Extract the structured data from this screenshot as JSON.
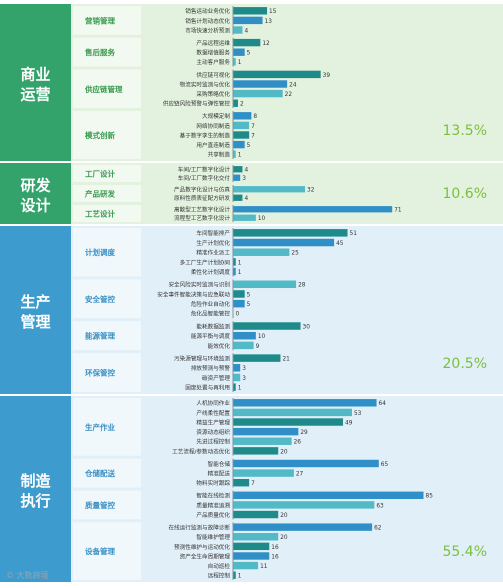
{
  "chart_data": {
    "type": "bar",
    "orientation": "horizontal",
    "x_max": 85,
    "grid": false,
    "colors": {
      "bar_dark": "#1e8a8a",
      "bar_blue": "#2f8fc6",
      "bar_light": "#52b9c7",
      "sector_green": "#33a26b",
      "sector_green_light": "#e3f2df",
      "sector_green_sub": "#3b9a4f",
      "sector_blue": "#3d9ccd",
      "sector_blue_light": "#e1eff8",
      "sector_blue_sub": "#3a8fc4",
      "percent": "#7cbf3f"
    },
    "sectors": [
      {
        "name": "商业运营",
        "name_lines": [
          "商业",
          "运营"
        ],
        "percent": "13.5%",
        "color": "green",
        "groups": [
          {
            "name": "营销管理",
            "items": [
              {
                "label": "销售运动业务优化",
                "value": 15
              },
              {
                "label": "销售计划动态优化",
                "value": 13
              },
              {
                "label": "市场快速分析预测",
                "value": 4
              }
            ]
          },
          {
            "name": "售后服务",
            "items": [
              {
                "label": "产品远程运维",
                "value": 12
              },
              {
                "label": "数据增值服务",
                "value": 5
              },
              {
                "label": "主动客户服务",
                "value": 1
              }
            ]
          },
          {
            "name": "供应链管理",
            "items": [
              {
                "label": "供应链可视化",
                "value": 39
              },
              {
                "label": "物流实时监测与优化",
                "value": 24
              },
              {
                "label": "采购策略优化",
                "value": 22
              },
              {
                "label": "供应链风险预警与弹性管控",
                "value": 2
              }
            ]
          },
          {
            "name": "模式创新",
            "items": [
              {
                "label": "大规模定制",
                "value": 8
              },
              {
                "label": "网络协同制造",
                "value": 7
              },
              {
                "label": "基于数字孪生的制造",
                "value": 7
              },
              {
                "label": "用户直连制造",
                "value": 5
              },
              {
                "label": "共享制造",
                "value": 1
              }
            ]
          }
        ]
      },
      {
        "name": "研发设计",
        "name_lines": [
          "研发",
          "设计"
        ],
        "percent": "10.6%",
        "color": "green",
        "groups": [
          {
            "name": "工厂设计",
            "items": [
              {
                "label": "车间/工厂数字化设计",
                "value": 4
              },
              {
                "label": "车间/工厂数字化交付",
                "value": 3
              }
            ]
          },
          {
            "name": "产品研发",
            "items": [
              {
                "label": "产品数字化设计与仿真",
                "value": 32
              },
              {
                "label": "原料性质表征配方研发",
                "value": 4
              }
            ]
          },
          {
            "name": "工艺设计",
            "items": [
              {
                "label": "离散型工艺数字化设计",
                "value": 71
              },
              {
                "label": "流程型工艺数字化设计",
                "value": 10
              }
            ]
          }
        ]
      },
      {
        "name": "生产管理",
        "name_lines": [
          "生产",
          "管理"
        ],
        "percent": "20.5%",
        "color": "blue",
        "groups": [
          {
            "name": "计划调度",
            "items": [
              {
                "label": "车间智能排产",
                "value": 51
              },
              {
                "label": "生产计划优化",
                "value": 45
              },
              {
                "label": "精准作业派工",
                "value": 25
              },
              {
                "label": "多工厂生产计划协同",
                "value": 1
              },
              {
                "label": "柔性化计划调度",
                "value": 1
              }
            ]
          },
          {
            "name": "安全管控",
            "items": [
              {
                "label": "安全风险实时监测与识别",
                "value": 28
              },
              {
                "label": "安全事件智能决策与应急联动",
                "value": 5
              },
              {
                "label": "危险作业自动化",
                "value": 5
              },
              {
                "label": "危化品智能管控",
                "value": 0
              }
            ]
          },
          {
            "name": "能源管理",
            "items": [
              {
                "label": "能耗数据监测",
                "value": 30
              },
              {
                "label": "能源平衡与调度",
                "value": 10
              },
              {
                "label": "能效优化",
                "value": 9
              }
            ]
          },
          {
            "name": "环保管控",
            "items": [
              {
                "label": "污染源管理与环境监测",
                "value": 21
              },
              {
                "label": "排放预测与预警",
                "value": 3
              },
              {
                "label": "碳资产管理",
                "value": 3
              },
              {
                "label": "固废处置与再利用",
                "value": 1
              }
            ]
          }
        ]
      },
      {
        "name": "制造执行",
        "name_lines": [
          "制造",
          "执行"
        ],
        "percent": "55.4%",
        "color": "blue",
        "groups": [
          {
            "name": "生产作业",
            "items": [
              {
                "label": "人机协同作业",
                "value": 64
              },
              {
                "label": "产线柔性配置",
                "value": 53
              },
              {
                "label": "精益生产管理",
                "value": 49
              },
              {
                "label": "资源动态组织",
                "value": 29
              },
              {
                "label": "先进过程控制",
                "value": 26
              },
              {
                "label": "工艺流程/参数动态优化",
                "value": 20
              }
            ]
          },
          {
            "name": "仓储配送",
            "items": [
              {
                "label": "智能仓储",
                "value": 65
              },
              {
                "label": "精准配送",
                "value": 27
              },
              {
                "label": "物料实时跟踪",
                "value": 7
              }
            ]
          },
          {
            "name": "质量管控",
            "items": [
              {
                "label": "智能在线检测",
                "value": 85
              },
              {
                "label": "质量精准追溯",
                "value": 63
              },
              {
                "label": "产品质量优化",
                "value": 20
              }
            ]
          },
          {
            "name": "设备管理",
            "items": [
              {
                "label": "在线运行监测与故障诊断",
                "value": 62
              },
              {
                "label": "智能维护管理",
                "value": 20
              },
              {
                "label": "预测性维护与运动优化",
                "value": 16
              },
              {
                "label": "资产全生命周期管理",
                "value": 16
              },
              {
                "label": "自动巡检",
                "value": 11
              },
              {
                "label": "远程控制",
                "value": 1
              }
            ]
          }
        ]
      }
    ]
  },
  "watermark": "© 大数跨境"
}
